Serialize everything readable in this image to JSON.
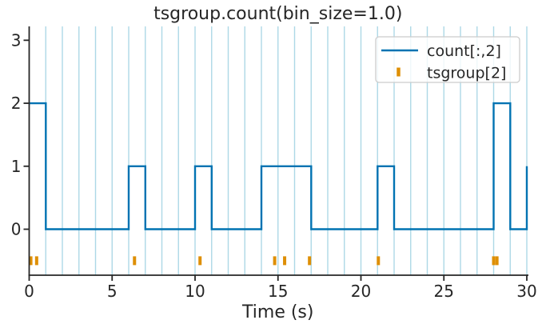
{
  "window": {
    "title": "tsgroup.count(bin_size=1.0)"
  },
  "colors": {
    "count_line": "#0173b2",
    "event_marker": "#de8f05",
    "gridline": "#add8e6",
    "axis": "#262626",
    "text": "#262626",
    "background": "#ffffff",
    "legend_border": "#cccccc",
    "legend_fill": "rgba(255,255,255,0.8)"
  },
  "legend": {
    "position": "upper right",
    "border_color": "#cccccc",
    "entries": [
      {
        "label": "count[:,2]",
        "sample": "line",
        "color": "#0173b2"
      },
      {
        "label": "tsgroup[2]",
        "sample": "tick-marker",
        "color": "#de8f05"
      }
    ]
  },
  "chart_data": {
    "type": "line",
    "subtype": "step-post",
    "title": "tsgroup.count(bin_size=1.0)",
    "xlabel": "Time (s)",
    "ylabel": "",
    "xlim": [
      0,
      30
    ],
    "ylim": [
      -0.73,
      3.22
    ],
    "xticks": [
      0,
      5,
      10,
      15,
      20,
      25,
      30
    ],
    "yticks": [
      0,
      1,
      2,
      3
    ],
    "grid": {
      "axis": "x",
      "start": 1,
      "end": 30,
      "step": 1,
      "note": "light blue vertical lines at every 1 s bin edge"
    },
    "bin_size": 1.0,
    "bin_counts": [
      2,
      0,
      0,
      0,
      0,
      0,
      1,
      0,
      0,
      0,
      1,
      0,
      0,
      0,
      1,
      1,
      1,
      0,
      0,
      0,
      0,
      1,
      0,
      0,
      0,
      0,
      0,
      0,
      2,
      0
    ],
    "series": [
      {
        "name": "count[:,2]",
        "type": "step",
        "where": "post",
        "color": "#0173b2",
        "x": [
          0,
          1,
          6,
          7,
          10,
          11,
          14,
          17,
          21,
          22,
          28,
          29,
          30
        ],
        "y": [
          2,
          0,
          1,
          0,
          1,
          0,
          1,
          0,
          1,
          0,
          2,
          0,
          1
        ]
      },
      {
        "name": "tsgroup[2]",
        "type": "events",
        "marker": "|",
        "color": "#de8f05",
        "y": -0.5,
        "times": [
          0.1,
          0.45,
          6.35,
          10.3,
          14.8,
          15.4,
          16.9,
          21.05,
          28.0,
          28.2
        ]
      }
    ]
  }
}
